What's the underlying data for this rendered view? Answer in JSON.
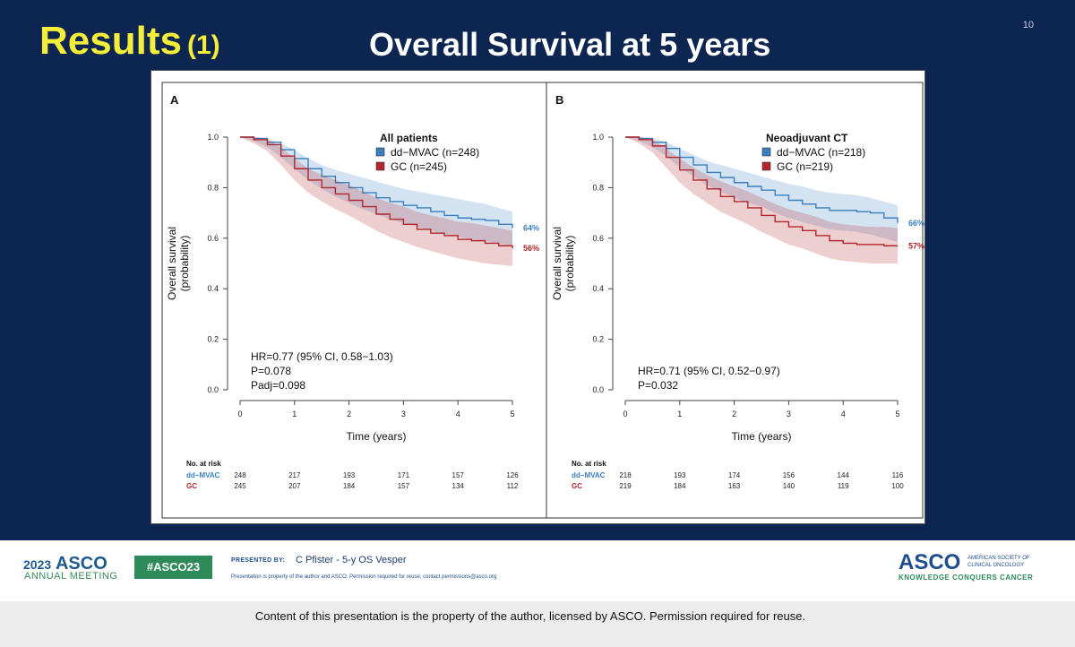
{
  "slide": {
    "number": "10",
    "results_label": "Results",
    "results_index": "(1)",
    "title": "Overall Survival at 5 years"
  },
  "panels": [
    {
      "letter": "A",
      "legend_title": "All patients",
      "legend": [
        "dd−MVAC (n=248)",
        "GC (n=245)"
      ],
      "end_labels": [
        "64%",
        "56%"
      ],
      "stats": [
        "HR=0.77 (95% CI, 0.58−1.03)",
        "P=0.078",
        "Padj=0.098"
      ],
      "risk": {
        "dd-MVAC": [
          "248",
          "217",
          "193",
          "171",
          "157",
          "126"
        ],
        "GC": [
          "245",
          "207",
          "184",
          "157",
          "134",
          "112"
        ]
      }
    },
    {
      "letter": "B",
      "legend_title": "Neoadjuvant CT",
      "legend": [
        "dd−MVAC (n=218)",
        "GC (n=219)"
      ],
      "end_labels": [
        "66%",
        "57%"
      ],
      "stats": [
        "HR=0.71 (95% CI, 0.52−0.97)",
        "P=0.032"
      ],
      "risk": {
        "dd-MVAC": [
          "218",
          "193",
          "174",
          "156",
          "144",
          "116"
        ],
        "GC": [
          "219",
          "184",
          "163",
          "140",
          "119",
          "100"
        ]
      }
    }
  ],
  "axes": {
    "ylabel_line1": "Overall survival",
    "ylabel_line2": "(probability)",
    "xlabel": "Time (years)",
    "yticks": [
      "0.0",
      "0.2",
      "0.4",
      "0.6",
      "0.8",
      "1.0"
    ],
    "xticks": [
      "0",
      "1",
      "2",
      "3",
      "4",
      "5"
    ],
    "risk_header": "No. at risk",
    "risk_rows": [
      "dd−MVAC",
      "GC"
    ]
  },
  "chart_data": [
    {
      "type": "line",
      "subtype": "kaplan-meier",
      "panel": "A",
      "title": "All patients",
      "xlabel": "Time (years)",
      "ylabel": "Overall survival (probability)",
      "xlim": [
        0,
        5
      ],
      "ylim": [
        0,
        1
      ],
      "x": [
        0,
        0.25,
        0.5,
        0.75,
        1,
        1.25,
        1.5,
        1.75,
        2,
        2.25,
        2.5,
        2.75,
        3,
        3.25,
        3.5,
        3.75,
        4,
        4.25,
        4.5,
        4.75,
        5
      ],
      "series": [
        {
          "name": "dd−MVAC (n=248)",
          "color": "#3a7fbf",
          "values": [
            1.0,
            0.995,
            0.98,
            0.95,
            0.915,
            0.875,
            0.845,
            0.82,
            0.8,
            0.78,
            0.76,
            0.745,
            0.73,
            0.72,
            0.705,
            0.69,
            0.68,
            0.675,
            0.67,
            0.655,
            0.64
          ],
          "lower": [
            1.0,
            0.985,
            0.96,
            0.92,
            0.875,
            0.83,
            0.795,
            0.765,
            0.74,
            0.715,
            0.695,
            0.675,
            0.66,
            0.645,
            0.63,
            0.615,
            0.605,
            0.595,
            0.59,
            0.58,
            0.57
          ],
          "upper": [
            1.0,
            1.0,
            0.995,
            0.975,
            0.95,
            0.915,
            0.89,
            0.87,
            0.855,
            0.84,
            0.825,
            0.81,
            0.795,
            0.785,
            0.775,
            0.765,
            0.755,
            0.745,
            0.735,
            0.72,
            0.705
          ]
        },
        {
          "name": "GC (n=245)",
          "color": "#b3262b",
          "values": [
            1.0,
            0.99,
            0.97,
            0.925,
            0.875,
            0.83,
            0.8,
            0.775,
            0.75,
            0.725,
            0.695,
            0.675,
            0.655,
            0.635,
            0.62,
            0.61,
            0.595,
            0.59,
            0.58,
            0.57,
            0.56
          ],
          "lower": [
            1.0,
            0.975,
            0.945,
            0.89,
            0.83,
            0.78,
            0.745,
            0.715,
            0.69,
            0.66,
            0.63,
            0.605,
            0.585,
            0.565,
            0.55,
            0.535,
            0.52,
            0.51,
            0.5,
            0.495,
            0.49
          ],
          "upper": [
            1.0,
            1.0,
            0.99,
            0.96,
            0.915,
            0.875,
            0.85,
            0.83,
            0.81,
            0.785,
            0.76,
            0.74,
            0.725,
            0.705,
            0.69,
            0.68,
            0.665,
            0.66,
            0.65,
            0.64,
            0.63
          ]
        }
      ]
    },
    {
      "type": "line",
      "subtype": "kaplan-meier",
      "panel": "B",
      "title": "Neoadjuvant CT",
      "xlabel": "Time (years)",
      "ylabel": "Overall survival (probability)",
      "xlim": [
        0,
        5
      ],
      "ylim": [
        0,
        1
      ],
      "x": [
        0,
        0.25,
        0.5,
        0.75,
        1,
        1.25,
        1.5,
        1.75,
        2,
        2.25,
        2.5,
        2.75,
        3,
        3.25,
        3.5,
        3.75,
        4,
        4.25,
        4.5,
        4.75,
        5
      ],
      "series": [
        {
          "name": "dd−MVAC (n=218)",
          "color": "#3a7fbf",
          "values": [
            1.0,
            0.995,
            0.98,
            0.955,
            0.92,
            0.89,
            0.86,
            0.84,
            0.82,
            0.805,
            0.79,
            0.77,
            0.75,
            0.735,
            0.72,
            0.71,
            0.71,
            0.705,
            0.7,
            0.68,
            0.66
          ],
          "lower": [
            1.0,
            0.985,
            0.96,
            0.925,
            0.88,
            0.845,
            0.81,
            0.785,
            0.76,
            0.74,
            0.725,
            0.7,
            0.68,
            0.665,
            0.65,
            0.635,
            0.63,
            0.625,
            0.615,
            0.6,
            0.585
          ],
          "upper": [
            1.0,
            1.0,
            0.995,
            0.98,
            0.955,
            0.93,
            0.905,
            0.89,
            0.875,
            0.86,
            0.845,
            0.83,
            0.815,
            0.805,
            0.79,
            0.78,
            0.775,
            0.77,
            0.76,
            0.745,
            0.73
          ]
        },
        {
          "name": "GC (n=219)",
          "color": "#b3262b",
          "values": [
            1.0,
            0.99,
            0.965,
            0.92,
            0.87,
            0.83,
            0.795,
            0.765,
            0.745,
            0.72,
            0.69,
            0.665,
            0.645,
            0.63,
            0.61,
            0.59,
            0.58,
            0.575,
            0.575,
            0.57,
            0.57
          ],
          "lower": [
            1.0,
            0.975,
            0.94,
            0.88,
            0.82,
            0.775,
            0.74,
            0.705,
            0.68,
            0.655,
            0.625,
            0.6,
            0.575,
            0.56,
            0.54,
            0.52,
            0.51,
            0.505,
            0.5,
            0.5,
            0.5
          ],
          "upper": [
            1.0,
            1.0,
            0.99,
            0.955,
            0.915,
            0.88,
            0.85,
            0.825,
            0.805,
            0.785,
            0.76,
            0.735,
            0.715,
            0.7,
            0.685,
            0.665,
            0.655,
            0.65,
            0.645,
            0.645,
            0.64
          ]
        }
      ]
    }
  ],
  "footer": {
    "asco_year": "2023",
    "asco_name": "ASCO",
    "meeting": "ANNUAL MEETING",
    "hashtag": "#ASCO23",
    "presented_by": "PRESENTED BY:",
    "presenter": "C Pfister - 5-y OS Vesper",
    "property_note": "Presentation is property of the author and ASCO. Permission required for reuse; contact permissions@asco.org",
    "logo": "ASCO",
    "society": "AMERICAN SOCIETY OF CLINICAL ONCOLOGY",
    "tagline": "KNOWLEDGE CONQUERS CANCER",
    "notice": "Content of this presentation is the property of the author, licensed by ASCO. Permission required for reuse."
  },
  "colors": {
    "slide_bg": "#0d2551",
    "results_yellow": "#f4ee3a",
    "mvac_blue": "#3a7fbf",
    "gc_red": "#b3262b",
    "asco_green": "#2f8a5a"
  }
}
